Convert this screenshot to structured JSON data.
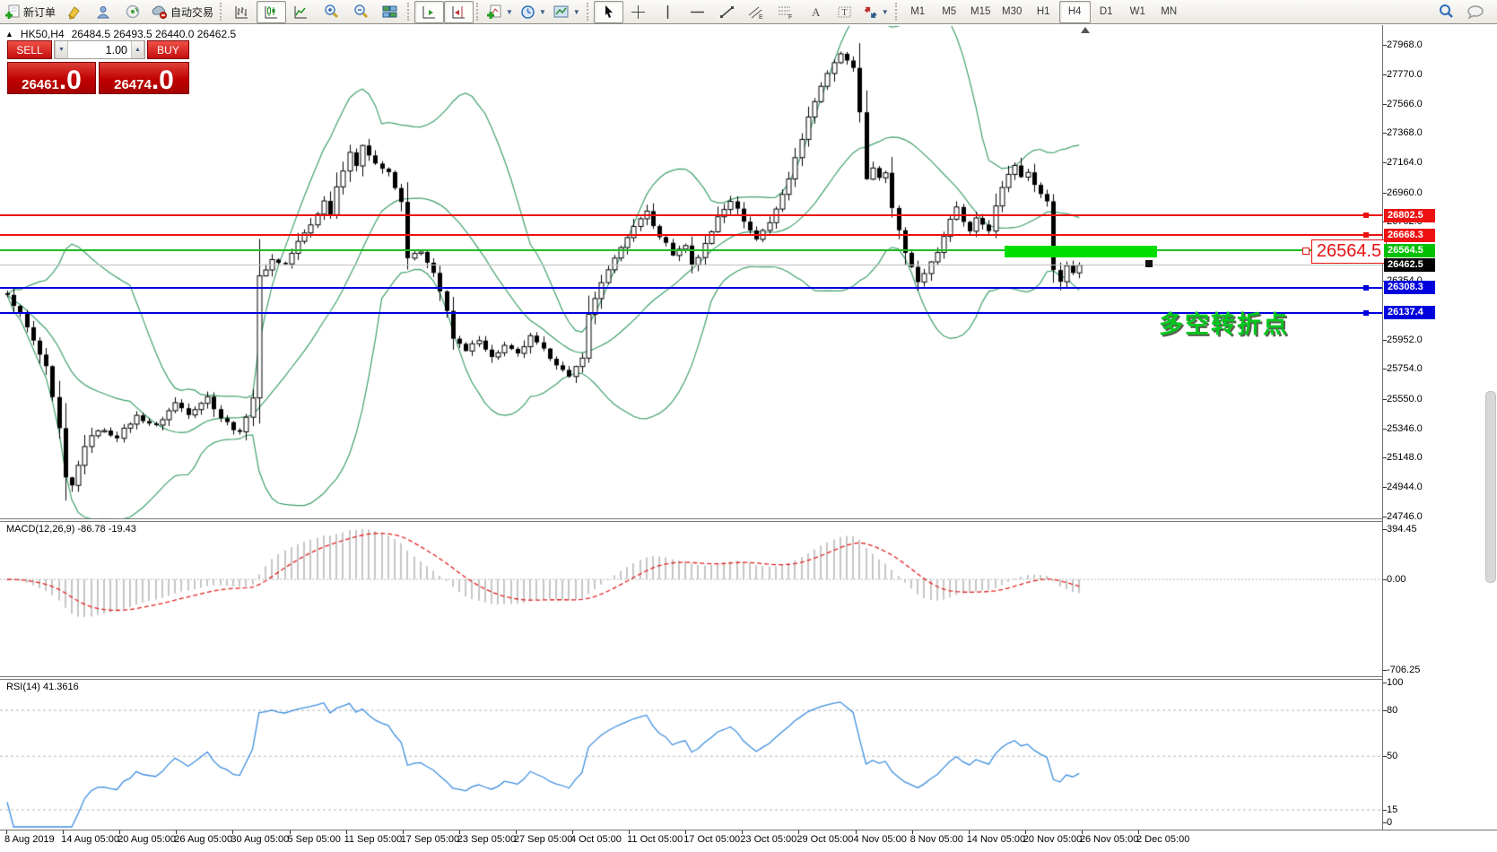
{
  "toolbar": {
    "new_order_label": "新订单",
    "auto_trading_label": "自动交易",
    "timeframes": [
      "M1",
      "M5",
      "M15",
      "M30",
      "H1",
      "H4",
      "D1",
      "W1",
      "MN"
    ],
    "active_timeframe": "H4"
  },
  "trade_panel": {
    "sell_label": "SELL",
    "buy_label": "BUY",
    "volume": "1.00",
    "sell_price_int": "26461",
    "sell_price_dec": ".0",
    "buy_price_int": "26474",
    "buy_price_dec": ".0"
  },
  "title": {
    "marker": "▲",
    "symbol_timeframe": "HK50,H4",
    "ohlc": "26484.5 26493.5 26440.0 26462.5"
  },
  "chart_data": {
    "type": "candlestick",
    "symbol": "HK50",
    "timeframe": "H4",
    "ohlc_display": {
      "open": 26484.5,
      "high": 26493.5,
      "low": 26440.0,
      "close": 26462.5
    },
    "bars_total": 167,
    "price_keyframes": [
      [
        0,
        26260
      ],
      [
        2,
        26130
      ],
      [
        4,
        25940
      ],
      [
        6,
        25760
      ],
      [
        8,
        25340
      ],
      [
        9,
        25000
      ],
      [
        10,
        24950
      ],
      [
        12,
        25230
      ],
      [
        14,
        25340
      ],
      [
        17,
        25290
      ],
      [
        20,
        25430
      ],
      [
        23,
        25360
      ],
      [
        26,
        25520
      ],
      [
        28,
        25450
      ],
      [
        31,
        25560
      ],
      [
        33,
        25420
      ],
      [
        36,
        25310
      ],
      [
        38,
        25560
      ],
      [
        39,
        26380
      ],
      [
        41,
        26500
      ],
      [
        43,
        26470
      ],
      [
        45,
        26620
      ],
      [
        47,
        26740
      ],
      [
        49,
        26900
      ],
      [
        50,
        26820
      ],
      [
        51,
        27000
      ],
      [
        53,
        27240
      ],
      [
        54,
        27130
      ],
      [
        55,
        27290
      ],
      [
        57,
        27160
      ],
      [
        59,
        27090
      ],
      [
        61,
        26890
      ],
      [
        62,
        26520
      ],
      [
        64,
        26550
      ],
      [
        66,
        26400
      ],
      [
        68,
        26160
      ],
      [
        69,
        25960
      ],
      [
        71,
        25870
      ],
      [
        73,
        25960
      ],
      [
        75,
        25830
      ],
      [
        77,
        25910
      ],
      [
        79,
        25850
      ],
      [
        81,
        25970
      ],
      [
        83,
        25880
      ],
      [
        85,
        25790
      ],
      [
        87,
        25690
      ],
      [
        89,
        25840
      ],
      [
        90,
        26120
      ],
      [
        92,
        26350
      ],
      [
        94,
        26500
      ],
      [
        96,
        26660
      ],
      [
        98,
        26780
      ],
      [
        99,
        26840
      ],
      [
        100,
        26720
      ],
      [
        102,
        26610
      ],
      [
        103,
        26540
      ],
      [
        105,
        26600
      ],
      [
        106,
        26470
      ],
      [
        107,
        26520
      ],
      [
        109,
        26690
      ],
      [
        110,
        26800
      ],
      [
        112,
        26910
      ],
      [
        113,
        26840
      ],
      [
        115,
        26700
      ],
      [
        116,
        26640
      ],
      [
        118,
        26760
      ],
      [
        120,
        26940
      ],
      [
        122,
        27190
      ],
      [
        124,
        27480
      ],
      [
        126,
        27690
      ],
      [
        128,
        27840
      ],
      [
        129,
        27910
      ],
      [
        131,
        27800
      ],
      [
        132,
        27510
      ],
      [
        133,
        27060
      ],
      [
        134,
        27120
      ],
      [
        135,
        27050
      ],
      [
        136,
        27100
      ],
      [
        137,
        26860
      ],
      [
        138,
        26710
      ],
      [
        139,
        26560
      ],
      [
        140,
        26450
      ],
      [
        141,
        26340
      ],
      [
        142,
        26410
      ],
      [
        144,
        26560
      ],
      [
        145,
        26650
      ],
      [
        146,
        26790
      ],
      [
        147,
        26860
      ],
      [
        148,
        26760
      ],
      [
        149,
        26700
      ],
      [
        150,
        26790
      ],
      [
        152,
        26700
      ],
      [
        153,
        26880
      ],
      [
        154,
        26990
      ],
      [
        155,
        27090
      ],
      [
        156,
        27150
      ],
      [
        157,
        27060
      ],
      [
        158,
        27100
      ],
      [
        160,
        26950
      ],
      [
        161,
        26900
      ],
      [
        162,
        26430
      ],
      [
        163,
        26350
      ],
      [
        164,
        26460
      ],
      [
        165,
        26410
      ],
      [
        166,
        26462.5
      ]
    ],
    "price_axis": {
      "ticks": [
        "27968.0",
        "27770.0",
        "27566.0",
        "27368.0",
        "27164.0",
        "26960.0",
        "26762.0",
        "26354.0",
        "25952.0",
        "25754.0",
        "25550.0",
        "25346.0",
        "25148.0",
        "24944.0",
        "24746.0"
      ],
      "tags": [
        {
          "text": "26802.5",
          "bg": "#ee1111"
        },
        {
          "text": "26668.3",
          "bg": "#ee1111"
        },
        {
          "text": "26564.5",
          "bg": "#00c000"
        },
        {
          "text": "26462.5",
          "bg": "#000000"
        },
        {
          "text": "26308.3",
          "bg": "#0000dd"
        },
        {
          "text": "26137.4",
          "bg": "#0000dd"
        }
      ]
    },
    "hlines": [
      {
        "price": 26802.5,
        "color": "#ee1111",
        "thickness": 2,
        "marker": true
      },
      {
        "price": 26668.3,
        "color": "#ee1111",
        "thickness": 2,
        "marker": true
      },
      {
        "price": 26564.5,
        "color": "#22bb22",
        "thickness": 2,
        "marker": false
      },
      {
        "price": 26462.5,
        "color": "#c0c0c0",
        "thickness": 1,
        "marker": false
      },
      {
        "price": 26308.3,
        "color": "#0000dd",
        "thickness": 2,
        "marker": true
      },
      {
        "price": 26137.4,
        "color": "#0000dd",
        "thickness": 2,
        "marker": true
      }
    ],
    "bollinger": {
      "period": 20,
      "deviation": 2,
      "color": "#3fa06a"
    },
    "highlight_band": {
      "color": "#00dd00"
    },
    "price_callout": {
      "text": "26564.5",
      "color": "#e81010"
    },
    "annotation": {
      "text": "多空转折点",
      "color": "#00c81e"
    },
    "time_axis": [
      "8 Aug 2019",
      "14 Aug 05:00",
      "20 Aug 05:00",
      "26 Aug 05:00",
      "30 Aug 05:00",
      "5 Sep 05:00",
      "11 Sep 05:00",
      "17 Sep 05:00",
      "23 Sep 05:00",
      "27 Sep 05:00",
      "4 Oct 05:00",
      "11 Oct 05:00",
      "17 Oct 05:00",
      "23 Oct 05:00",
      "29 Oct 05:00",
      "4 Nov 05:00",
      "8 Nov 05:00",
      "14 Nov 05:00",
      "20 Nov 05:00",
      "26 Nov 05:00",
      "2 Dec 05:00"
    ],
    "macd": {
      "label": "MACD(12,26,9) -86.78 -19.43",
      "fast": 12,
      "slow": 26,
      "signal_period": 9,
      "value": -86.78,
      "signal_value": -19.43,
      "ticks": [
        {
          "t": "394.45",
          "v": 394.45
        },
        {
          "t": "0.00",
          "v": 0
        },
        {
          "t": "-706.25",
          "v": -706.25
        }
      ],
      "histogram_color": "#c6c6c6",
      "signal_color": "#e02020"
    },
    "rsi": {
      "label": "RSI(14) 41.3616",
      "period": 14,
      "value": 41.3616,
      "ticks": [
        {
          "t": "100",
          "v": 100
        },
        {
          "t": "80",
          "v": 80
        },
        {
          "t": "50",
          "v": 50
        },
        {
          "t": "15",
          "v": 15
        },
        {
          "t": "0",
          "v": 0
        }
      ],
      "levels": [
        80,
        50,
        15
      ],
      "color": "#3e8ede"
    }
  }
}
